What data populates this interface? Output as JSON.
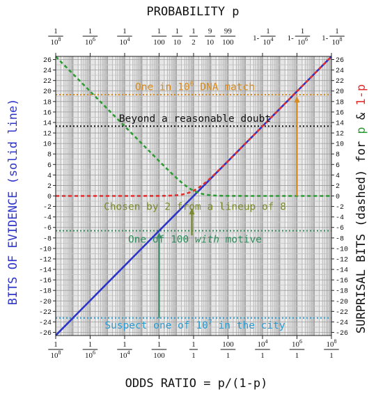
{
  "chart_data": {
    "type": "line",
    "title": "PROBABILITY p",
    "xlabel": "ODDS RATIO = p/(1-p)",
    "ylabel_left": "BITS OF EVIDENCE (solid line)",
    "ylabel_right": {
      "prefix": "SURPRISAL BITS (dashed) for ",
      "p": "p",
      "amp": " & ",
      "q": "1-p"
    },
    "x_scale": "log10 odds",
    "xlim_log10_odds": [
      -8,
      8
    ],
    "ylim_bits": [
      -26.6,
      26.6
    ],
    "grid": true,
    "y_ticks": [
      -26,
      -24,
      -22,
      -20,
      -18,
      -16,
      -14,
      -12,
      -10,
      -8,
      -6,
      -4,
      -2,
      0,
      2,
      4,
      6,
      8,
      10,
      12,
      14,
      16,
      18,
      20,
      22,
      24,
      26
    ],
    "bottom_ticks": [
      {
        "log10": -8,
        "num": "1",
        "den": "10",
        "exp": "8"
      },
      {
        "log10": -6,
        "num": "1",
        "den": "10",
        "exp": "6"
      },
      {
        "log10": -4,
        "num": "1",
        "den": "10",
        "exp": "4"
      },
      {
        "log10": -2,
        "num": "1",
        "den": "100",
        "exp": ""
      },
      {
        "log10": 0,
        "num": "1",
        "den": "1",
        "exp": ""
      },
      {
        "log10": 2,
        "num": "100",
        "den": "1",
        "exp": ""
      },
      {
        "log10": 4,
        "num": "10",
        "exp_num": "4",
        "den": "1",
        "exp": ""
      },
      {
        "log10": 6,
        "num": "10",
        "exp_num": "6",
        "den": "1",
        "exp": ""
      },
      {
        "log10": 8,
        "num": "10",
        "exp_num": "8",
        "den": "1",
        "exp": ""
      }
    ],
    "top_ticks": [
      {
        "log10": -8,
        "prefix": "",
        "num": "1",
        "den": "10",
        "exp": "8"
      },
      {
        "log10": -6,
        "prefix": "",
        "num": "1",
        "den": "10",
        "exp": "6"
      },
      {
        "log10": -4,
        "prefix": "",
        "num": "1",
        "den": "10",
        "exp": "4"
      },
      {
        "log10": -2,
        "prefix": "",
        "num": "1",
        "den": "100",
        "exp": ""
      },
      {
        "log10": -0.954,
        "prefix": "",
        "num": "1",
        "den": "10",
        "exp": ""
      },
      {
        "log10": 0,
        "prefix": "",
        "num": "1",
        "den": "2",
        "exp": ""
      },
      {
        "log10": 0.954,
        "prefix": "",
        "num": "9",
        "den": "10",
        "exp": ""
      },
      {
        "log10": 1.996,
        "prefix": "",
        "num": "99",
        "den": "100",
        "exp": ""
      },
      {
        "log10": 4,
        "prefix": "1-",
        "num": "1",
        "den": "10",
        "exp": "4"
      },
      {
        "log10": 6,
        "prefix": "1-",
        "num": "1",
        "den": "10",
        "exp": "6"
      },
      {
        "log10": 8,
        "prefix": "1-",
        "num": "1",
        "den": "10",
        "exp": "8"
      }
    ],
    "series": [],
    "curves": {
      "evidence": {
        "style": "solid",
        "color": "#2d34c8",
        "formula": "bits = log2(odds)"
      },
      "surprisal_p": {
        "style": "dashed",
        "color": "#e03030",
        "formula": "bits = -log2(1-p)"
      },
      "surprisal_q": {
        "style": "dashed",
        "color": "#2e9a35",
        "formula": "bits = -log2(p)"
      }
    },
    "annotations": [
      {
        "text_pre": "One in 10",
        "sup": "6",
        "text_post": " DNA match",
        "y_bits": 19.3,
        "color": "#d98a1c",
        "label_y_bits": 20.8
      },
      {
        "text_pre": "Beyond a reasonable doubt",
        "sup": "",
        "text_post": "",
        "y_bits": 13.3,
        "color": "#111111",
        "label_y_bits": 14.8
      },
      {
        "text_pre": "Chosen by 2 from a lineup of 8",
        "sup": "",
        "text_post": "",
        "y_bits": -2,
        "color": "#7a8a2e",
        "label_y_bits": -2,
        "no_line": true
      },
      {
        "text_pre": "One of 100 ",
        "italic": "with",
        "text_post": " motive",
        "y_bits": -6.64,
        "color": "#2e8a5a",
        "label_y_bits": -8.2
      },
      {
        "text_pre": "Suspect one of 10",
        "sup": "7",
        "text_post": " in the city",
        "y_bits": -23.25,
        "color": "#2a9ad0",
        "label_y_bits": -24.6
      }
    ],
    "arrows": [
      {
        "log10_odds": 6,
        "from_bits": 0,
        "to_bits": 19.0,
        "color": "#d98a1c"
      },
      {
        "log10_odds": -2,
        "from_bits": -23.25,
        "to_bits": -6.9,
        "color": "#3b8a6a"
      },
      {
        "log10_odds": -0.1,
        "from_bits": -7.5,
        "to_bits": -2.3,
        "color": "#7a8a2e"
      }
    ]
  }
}
